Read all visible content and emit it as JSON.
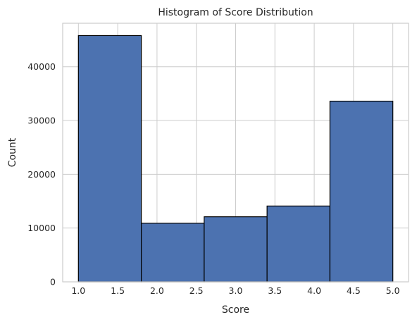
{
  "chart_data": {
    "type": "bar",
    "title": "Histogram of Score Distribution",
    "xlabel": "Score",
    "ylabel": "Count",
    "bins": [
      {
        "start": 1.0,
        "end": 1.8,
        "count": 45800
      },
      {
        "start": 1.8,
        "end": 2.6,
        "count": 10900
      },
      {
        "start": 2.6,
        "end": 3.4,
        "count": 12100
      },
      {
        "start": 3.4,
        "end": 4.2,
        "count": 14100
      },
      {
        "start": 4.2,
        "end": 5.0,
        "count": 33600
      }
    ],
    "xlim": [
      0.8,
      5.2
    ],
    "ylim": [
      0,
      48090
    ],
    "xticks": [
      1.0,
      1.5,
      2.0,
      2.5,
      3.0,
      3.5,
      4.0,
      4.5,
      5.0
    ],
    "xtick_labels": [
      "1.0",
      "1.5",
      "2.0",
      "2.5",
      "3.0",
      "3.5",
      "4.0",
      "4.5",
      "5.0"
    ],
    "yticks": [
      0,
      10000,
      20000,
      30000,
      40000
    ],
    "ytick_labels": [
      "0",
      "10000",
      "20000",
      "30000",
      "40000"
    ],
    "grid": true,
    "colors": {
      "bar_fill": "#4c72b0",
      "bar_edge": "#000000",
      "grid": "#cccccc",
      "text": "#262626"
    }
  }
}
